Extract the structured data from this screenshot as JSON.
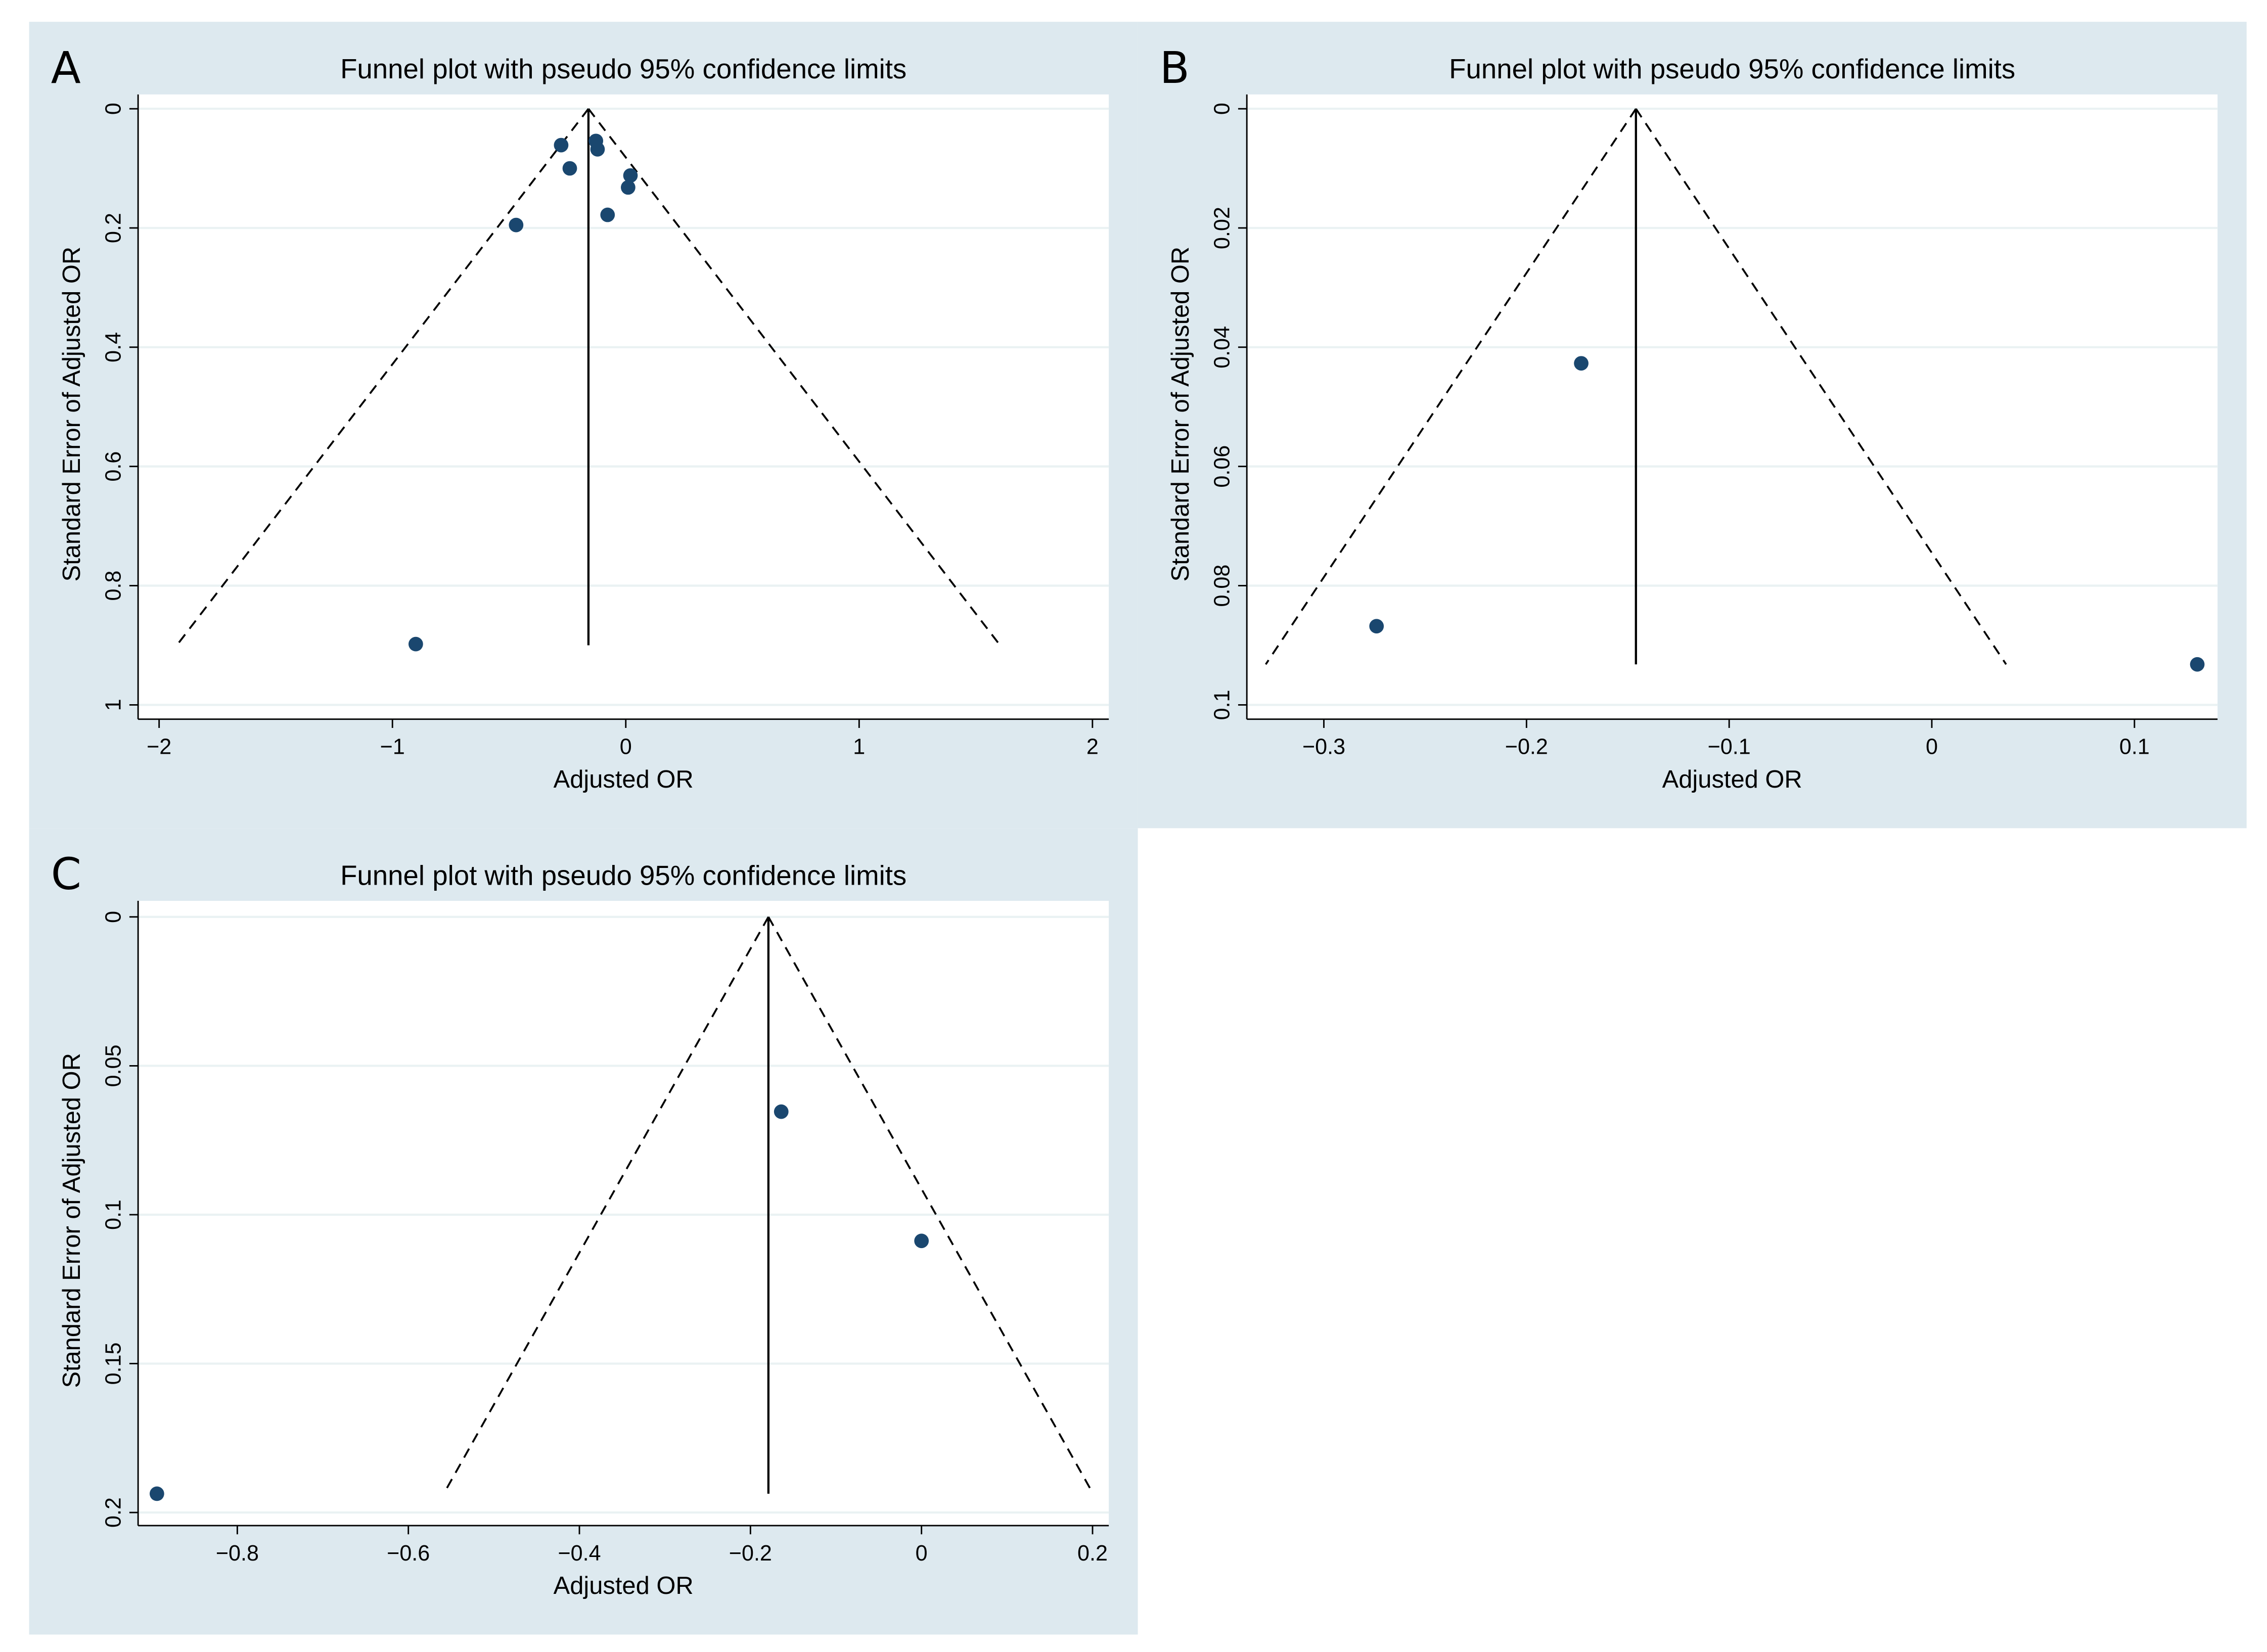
{
  "chart_data": [
    {
      "type": "scatter",
      "panel_label": "A",
      "title": "Funnel plot with pseudo 95% confidence limits",
      "x_label": "Adjusted OR",
      "y_label": "Standard Error of Adjusted OR",
      "x": [
        -0.277,
        -0.24,
        -0.128,
        -0.121,
        0.02,
        0.01,
        -0.078,
        -0.47,
        -0.9
      ],
      "y": [
        0.061,
        0.1,
        0.054,
        0.068,
        0.112,
        0.132,
        0.178,
        0.195,
        0.898
      ],
      "color": "#1a476f",
      "pooled_estimate": -0.16,
      "funnel_se_max": 0.9,
      "xlim": [
        -2.09,
        2.07
      ],
      "ylim": [
        -0.024,
        1.024
      ],
      "y_inverted": true,
      "grid": true,
      "xticks": [
        {
          "value": -2,
          "label": "−2"
        },
        {
          "value": -1,
          "label": "−1"
        },
        0,
        1,
        2
      ],
      "yticks": [
        0,
        0.2,
        0.4,
        0.6,
        0.8,
        1
      ]
    },
    {
      "type": "scatter",
      "panel_label": "B",
      "title": "Funnel plot with pseudo 95% confidence limits",
      "x_label": "Adjusted OR",
      "y_label": "Standard Error of Adjusted OR",
      "x": [
        -0.173,
        -0.274,
        0.131
      ],
      "y": [
        0.0427,
        0.0868,
        0.0932
      ],
      "color": "#1a476f",
      "pooled_estimate": -0.146,
      "funnel_se_max": 0.0932,
      "xlim": [
        -0.338,
        0.141
      ],
      "ylim": [
        -0.0024,
        0.1024
      ],
      "y_inverted": true,
      "grid": true,
      "xticks": [
        {
          "value": -0.3,
          "label": "−0.3"
        },
        {
          "value": -0.2,
          "label": "−0.2"
        },
        {
          "value": -0.1,
          "label": "−0.1"
        },
        0,
        0.1
      ],
      "yticks": [
        0,
        0.02,
        0.04,
        0.06,
        0.08,
        0.1
      ]
    },
    {
      "type": "scatter",
      "panel_label": "C",
      "title": "Funnel plot with pseudo 95% confidence limits",
      "x_label": "Adjusted OR",
      "y_label": "Standard Error of Adjusted OR",
      "x": [
        -0.164,
        0,
        -0.894
      ],
      "y": [
        0.0654,
        0.1088,
        0.1937
      ],
      "color": "#1a476f",
      "pooled_estimate": -0.179,
      "funnel_se_max": 0.1937,
      "xlim": [
        -0.916,
        0.219
      ],
      "ylim": [
        -0.0054,
        0.2044
      ],
      "y_inverted": true,
      "grid": true,
      "xticks": [
        {
          "value": -0.8,
          "label": "−0.8"
        },
        {
          "value": -0.6,
          "label": "−0.6"
        },
        {
          "value": -0.4,
          "label": "−0.4"
        },
        {
          "value": -0.2,
          "label": "−0.2"
        },
        0,
        0.2
      ],
      "yticks": [
        0,
        0.05,
        0.1,
        0.15,
        0.2
      ]
    }
  ]
}
